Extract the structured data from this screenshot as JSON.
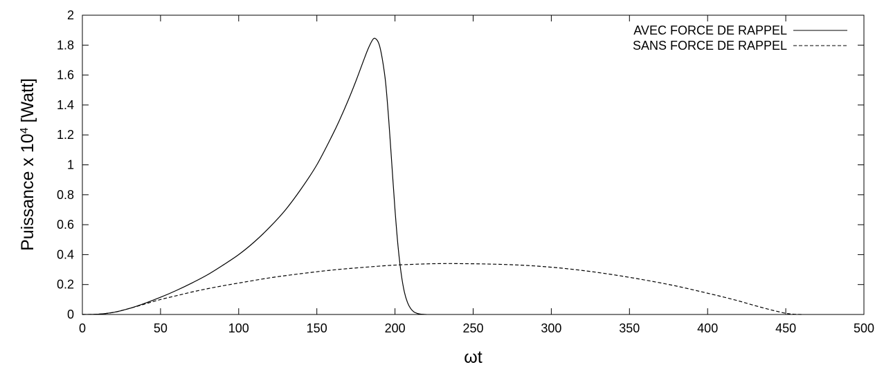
{
  "chart_data": {
    "type": "line",
    "xlabel": "ωt",
    "ylabel": "Puissance x 10",
    "ylabel_exponent": "4",
    "ylabel_unit": " [Watt]",
    "xlim": [
      0,
      500
    ],
    "ylim": [
      0,
      2
    ],
    "xticks": [
      "0",
      "50",
      "100",
      "150",
      "200",
      "250",
      "300",
      "350",
      "400",
      "450",
      "500"
    ],
    "yticks": [
      "0",
      "0.2",
      "0.4",
      "0.6",
      "0.8",
      "1",
      "1.2",
      "1.4",
      "1.6",
      "1.8",
      "2"
    ],
    "grid": false,
    "legend_position": "top-right",
    "series": [
      {
        "name": "AVEC FORCE DE RAPPEL",
        "style": "solid",
        "color": "#000000",
        "x": [
          0,
          10,
          20,
          30,
          40,
          50,
          60,
          70,
          80,
          90,
          100,
          110,
          120,
          130,
          140,
          150,
          160,
          165,
          170,
          175,
          180,
          183,
          186,
          188,
          190,
          192,
          194,
          196,
          198,
          200,
          202,
          204,
          206,
          208,
          210,
          212,
          214,
          216,
          218,
          220
        ],
        "y": [
          0,
          0.002,
          0.014,
          0.04,
          0.075,
          0.115,
          0.16,
          0.21,
          0.265,
          0.33,
          0.4,
          0.485,
          0.585,
          0.7,
          0.84,
          1.0,
          1.2,
          1.31,
          1.43,
          1.56,
          1.7,
          1.78,
          1.84,
          1.84,
          1.8,
          1.7,
          1.55,
          1.3,
          1.0,
          0.7,
          0.45,
          0.27,
          0.15,
          0.08,
          0.04,
          0.018,
          0.008,
          0.003,
          0.001,
          0
        ]
      },
      {
        "name": "SANS FORCE DE RAPPEL",
        "style": "dashed",
        "color": "#000000",
        "x": [
          0,
          10,
          20,
          30,
          40,
          50,
          60,
          70,
          80,
          90,
          100,
          120,
          140,
          160,
          180,
          200,
          220,
          230,
          240,
          260,
          280,
          300,
          320,
          340,
          360,
          380,
          400,
          410,
          420,
          430,
          440,
          450,
          455,
          460
        ],
        "y": [
          0,
          0.002,
          0.014,
          0.04,
          0.07,
          0.1,
          0.125,
          0.15,
          0.172,
          0.192,
          0.21,
          0.245,
          0.273,
          0.297,
          0.315,
          0.33,
          0.338,
          0.34,
          0.34,
          0.337,
          0.33,
          0.316,
          0.294,
          0.265,
          0.23,
          0.19,
          0.142,
          0.117,
          0.09,
          0.06,
          0.032,
          0.008,
          0.002,
          0
        ]
      }
    ]
  }
}
